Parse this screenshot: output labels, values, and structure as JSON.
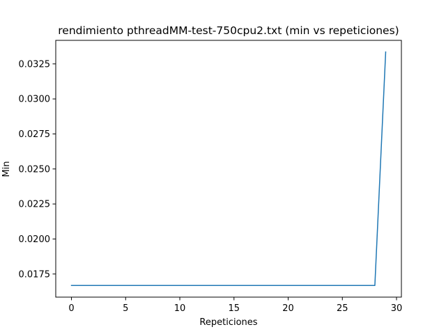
{
  "chart_data": {
    "type": "line",
    "title": "rendimiento pthreadMM-test-750cpu2.txt (min vs repeticiones)",
    "xlabel": "Repeticiones",
    "ylabel": "Min",
    "xlim": [
      -1.45,
      30.45
    ],
    "ylim": [
      0.01585,
      0.03418
    ],
    "xticks": [
      0,
      5,
      10,
      15,
      20,
      25,
      30
    ],
    "xtick_labels": [
      "0",
      "5",
      "10",
      "15",
      "20",
      "25",
      "30"
    ],
    "yticks": [
      0.0175,
      0.02,
      0.0225,
      0.025,
      0.0275,
      0.03,
      0.0325
    ],
    "ytick_labels": [
      "0.0175",
      "0.0200",
      "0.0225",
      "0.0250",
      "0.0275",
      "0.0300",
      "0.0325"
    ],
    "grid": false,
    "series": [
      {
        "color": "#1f77b4",
        "x": [
          0,
          1,
          2,
          3,
          4,
          5,
          6,
          7,
          8,
          9,
          10,
          11,
          12,
          13,
          14,
          15,
          16,
          17,
          18,
          19,
          20,
          21,
          22,
          23,
          24,
          25,
          26,
          27,
          28,
          29
        ],
        "y": [
          0.01668,
          0.01668,
          0.01668,
          0.01668,
          0.01668,
          0.01668,
          0.01668,
          0.01668,
          0.01668,
          0.01668,
          0.01668,
          0.01668,
          0.01668,
          0.01668,
          0.01668,
          0.01668,
          0.01668,
          0.01668,
          0.01668,
          0.01668,
          0.01668,
          0.01668,
          0.01668,
          0.01668,
          0.01668,
          0.01668,
          0.01668,
          0.01668,
          0.01668,
          0.03335
        ]
      }
    ]
  }
}
